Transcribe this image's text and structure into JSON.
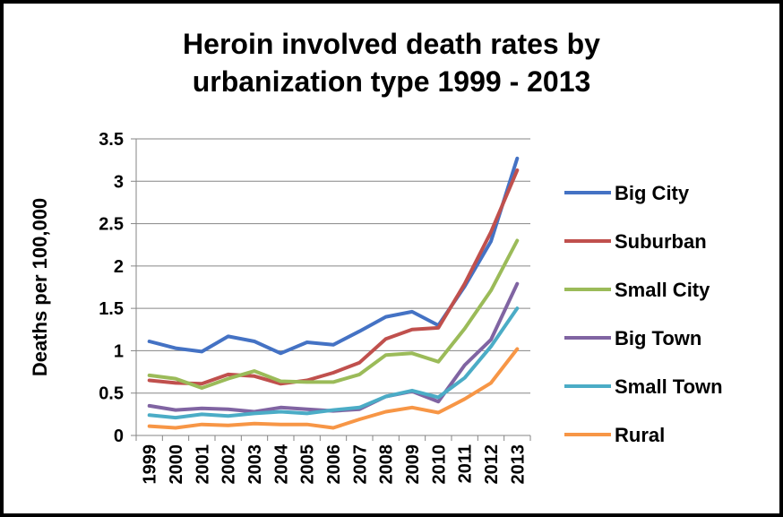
{
  "chart_data": {
    "type": "line",
    "title_line1": "Heroin involved death rates by",
    "title_line2": "urbanization type 1999 - 2013",
    "ylabel": "Deaths per 100,000",
    "xlabel": "",
    "ylim": [
      0,
      3.5
    ],
    "yticks": [
      "0",
      "0.5",
      "1",
      "1.5",
      "2",
      "2.5",
      "3",
      "3.5"
    ],
    "categories": [
      "1999",
      "2000",
      "2001",
      "2002",
      "2003",
      "2004",
      "2005",
      "2006",
      "2007",
      "2008",
      "2009",
      "2010",
      "2011",
      "2012",
      "2013"
    ],
    "grid": "horizontal",
    "legend_position": "right",
    "series": [
      {
        "name": "Big City",
        "color": "#4472C4",
        "values": [
          1.11,
          1.03,
          0.99,
          1.17,
          1.11,
          0.97,
          1.1,
          1.07,
          1.23,
          1.4,
          1.46,
          1.3,
          1.76,
          2.29,
          3.27
        ]
      },
      {
        "name": "Suburban",
        "color": "#C0504D",
        "values": [
          0.65,
          0.62,
          0.61,
          0.72,
          0.7,
          0.61,
          0.65,
          0.74,
          0.86,
          1.14,
          1.25,
          1.27,
          1.79,
          2.4,
          3.13
        ]
      },
      {
        "name": "Small City",
        "color": "#9BBB59",
        "values": [
          0.71,
          0.67,
          0.56,
          0.67,
          0.76,
          0.64,
          0.63,
          0.63,
          0.72,
          0.95,
          0.97,
          0.87,
          1.26,
          1.71,
          2.3
        ]
      },
      {
        "name": "Big Town",
        "color": "#8064A2",
        "values": [
          0.35,
          0.3,
          0.32,
          0.31,
          0.28,
          0.33,
          0.31,
          0.29,
          0.31,
          0.46,
          0.52,
          0.4,
          0.83,
          1.13,
          1.79
        ]
      },
      {
        "name": "Small Town",
        "color": "#4BACC6",
        "values": [
          0.24,
          0.21,
          0.25,
          0.23,
          0.26,
          0.28,
          0.26,
          0.3,
          0.33,
          0.46,
          0.53,
          0.45,
          0.68,
          1.05,
          1.5
        ]
      },
      {
        "name": "Rural",
        "color": "#F79646",
        "values": [
          0.11,
          0.09,
          0.13,
          0.12,
          0.14,
          0.13,
          0.13,
          0.09,
          0.19,
          0.28,
          0.33,
          0.27,
          0.43,
          0.62,
          1.02
        ]
      }
    ]
  }
}
